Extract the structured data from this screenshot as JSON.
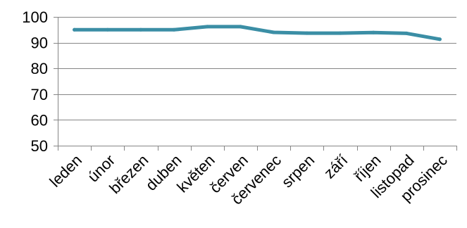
{
  "chart_data": {
    "type": "line",
    "title": "",
    "xlabel": "",
    "ylabel": "",
    "categories": [
      "leden",
      "únor",
      "březen",
      "duben",
      "květen",
      "červen",
      "červenec",
      "srpen",
      "září",
      "říjen",
      "listopad",
      "prosinec"
    ],
    "series": [
      {
        "values": [
          95.0,
          95.0,
          95.0,
          95.0,
          96.2,
          96.2,
          94.0,
          93.7,
          93.7,
          93.9,
          93.6,
          91.3
        ],
        "color": "#3b8ea5"
      }
    ],
    "ylim": [
      50,
      100
    ],
    "yticks": [
      50,
      60,
      70,
      80,
      90,
      100
    ],
    "grid": true,
    "legend": "none"
  }
}
